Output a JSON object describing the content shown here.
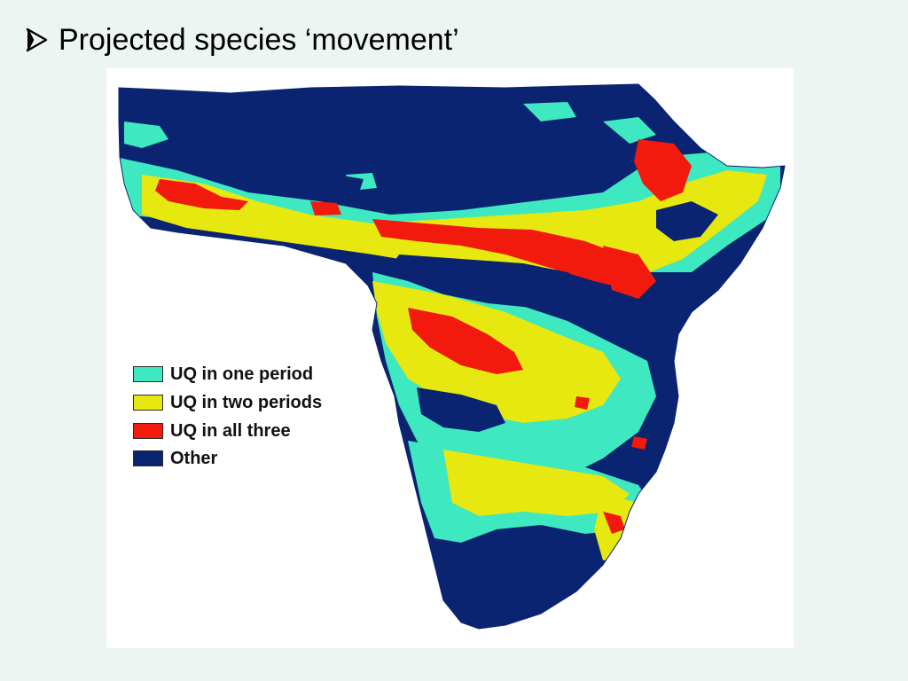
{
  "slide": {
    "title": "Projected species ‘movement’",
    "bullet_icon": "arrowhead-bullet"
  },
  "map": {
    "region": "Sub-Saharan Africa",
    "legend": [
      {
        "label": "UQ in one period",
        "color": "#3ee8c0"
      },
      {
        "label": "UQ in two periods",
        "color": "#e6e80f"
      },
      {
        "label": "UQ in all three",
        "color": "#f21a0d"
      },
      {
        "label": "Other",
        "color": "#0a2472"
      }
    ]
  }
}
